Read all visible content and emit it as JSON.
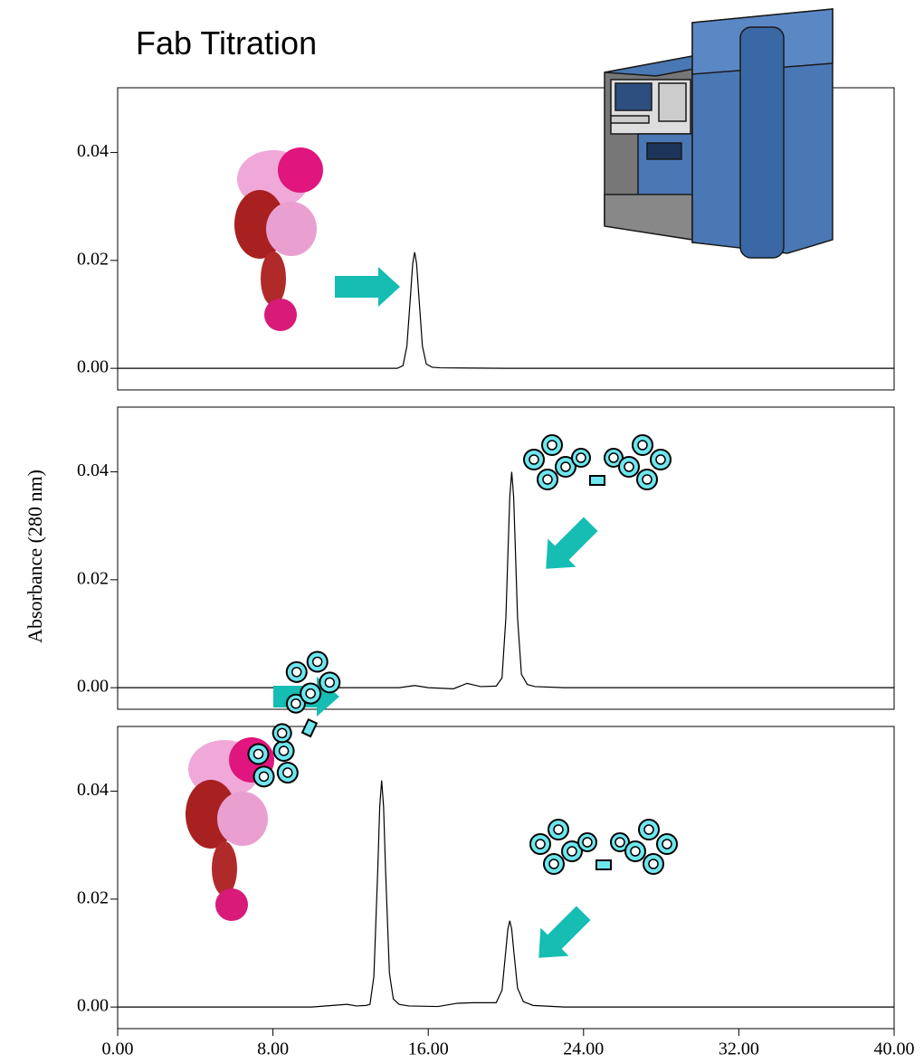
{
  "title": "Fab Titration",
  "ylabel": "Absorbance (280 nm)",
  "chart_data": [
    {
      "type": "line",
      "xlim": [
        0,
        40
      ],
      "ylim": [
        -0.004,
        0.052
      ],
      "yticks": [
        {
          "value": 0,
          "label": "0.00"
        },
        {
          "value": 0.02,
          "label": "0.02"
        },
        {
          "value": 0.04,
          "label": "0.04"
        }
      ],
      "x": [
        0,
        10,
        14.4,
        14.7,
        14.9,
        15.1,
        15.2,
        15.3,
        15.4,
        15.5,
        15.7,
        15.9,
        16.2,
        16.6,
        20,
        30,
        40
      ],
      "series": [
        {
          "color": "#000000",
          "values": [
            0,
            0,
            0,
            0.0005,
            0.0041,
            0.0142,
            0.0194,
            0.0215,
            0.0194,
            0.0142,
            0.0041,
            0.0008,
            0.0002,
            0.0001,
            0,
            0,
            0
          ]
        }
      ]
    },
    {
      "type": "line",
      "xlim": [
        0,
        40
      ],
      "ylim": [
        -0.004,
        0.052
      ],
      "yticks": [
        {
          "value": 0,
          "label": "0.00"
        },
        {
          "value": 0.02,
          "label": "0.02"
        },
        {
          "value": 0.04,
          "label": "0.04"
        }
      ],
      "x": [
        0,
        10,
        14.5,
        15.3,
        16,
        17.3,
        18,
        18.7,
        19.5,
        19.8,
        20.0,
        20.1,
        20.2,
        20.3,
        20.4,
        20.5,
        20.6,
        20.8,
        21.1,
        21.5,
        23,
        30,
        40
      ],
      "series": [
        {
          "color": "#000000",
          "values": [
            0,
            0,
            0,
            0.0004,
            0,
            -0.0002,
            0.0008,
            0.0002,
            0.0003,
            0.0018,
            0.013,
            0.0243,
            0.0353,
            0.04,
            0.0353,
            0.0243,
            0.013,
            0.0025,
            0.0006,
            0.0002,
            0,
            0,
            0
          ]
        }
      ]
    },
    {
      "type": "line",
      "xlim": [
        0,
        40
      ],
      "ylim": [
        -0.004,
        0.052
      ],
      "yticks": [
        {
          "value": 0,
          "label": "0.00"
        },
        {
          "value": 0.02,
          "label": "0.02"
        },
        {
          "value": 0.04,
          "label": "0.04"
        }
      ],
      "xticks": [
        {
          "value": 0,
          "label": "0.00"
        },
        {
          "value": 8,
          "label": "8.00"
        },
        {
          "value": 16,
          "label": "16.00"
        },
        {
          "value": 24,
          "label": "24.00"
        },
        {
          "value": 32,
          "label": "32.00"
        },
        {
          "value": 40,
          "label": "40.00"
        }
      ],
      "x": [
        0,
        10,
        11.8,
        12.3,
        12.8,
        13.0,
        13.2,
        13.4,
        13.5,
        13.6,
        13.7,
        13.8,
        14.0,
        14.2,
        14.5,
        15,
        16.5,
        17.5,
        18.3,
        19.0,
        19.5,
        19.8,
        20.0,
        20.1,
        20.2,
        20.3,
        20.4,
        20.6,
        20.9,
        21.4,
        23,
        30,
        40
      ],
      "series": [
        {
          "color": "#000000",
          "values": [
            0,
            0,
            0.0005,
            0.0002,
            0.0003,
            0.0005,
            0.0057,
            0.0255,
            0.0371,
            0.042,
            0.0371,
            0.0255,
            0.0063,
            0.0015,
            0.0005,
            0.0002,
            0.0001,
            0.0007,
            0.0008,
            0.0008,
            0.0008,
            0.0031,
            0.0106,
            0.0144,
            0.016,
            0.0144,
            0.0106,
            0.0035,
            0.001,
            0.0003,
            0,
            0,
            0
          ]
        }
      ]
    }
  ]
}
